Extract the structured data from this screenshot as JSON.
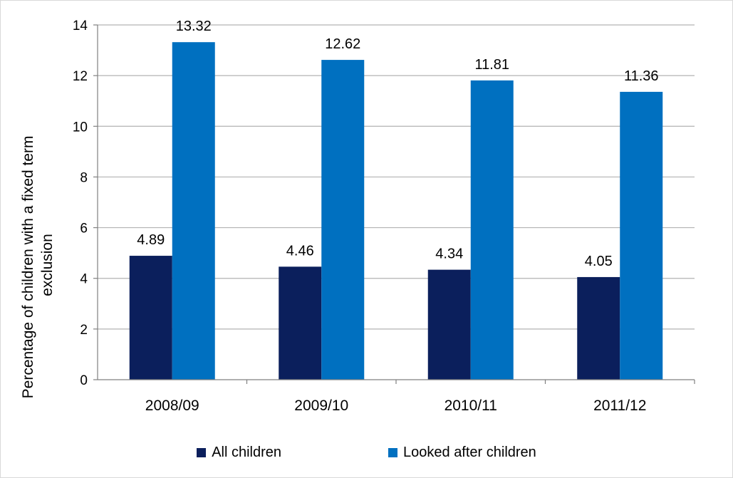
{
  "chart_data": {
    "type": "bar",
    "title": "",
    "xlabel": "",
    "ylabel": "Percentage of children with a fixed term exclusion",
    "ylabel_lines": [
      "Percentage of children with a fixed term",
      "exclusion"
    ],
    "categories": [
      "2008/09",
      "2009/10",
      "2010/11",
      "2011/12"
    ],
    "series": [
      {
        "name": "All children",
        "color": "#0b1f5c",
        "values": [
          4.89,
          4.46,
          4.34,
          4.05
        ],
        "labels": [
          "4.89",
          "4.46",
          "4.34",
          "4.05"
        ]
      },
      {
        "name": "Looked after children",
        "color": "#0070c0",
        "values": [
          13.32,
          12.62,
          11.81,
          11.36
        ],
        "labels": [
          "13.32",
          "12.62",
          "11.81",
          "11.36"
        ]
      }
    ],
    "ylim": [
      0,
      14
    ],
    "yticks": [
      0,
      2,
      4,
      6,
      8,
      10,
      12,
      14
    ],
    "ytick_labels": [
      "0",
      "2",
      "4",
      "6",
      "8",
      "10",
      "12",
      "14"
    ],
    "grid": true,
    "legend_position": "bottom"
  }
}
